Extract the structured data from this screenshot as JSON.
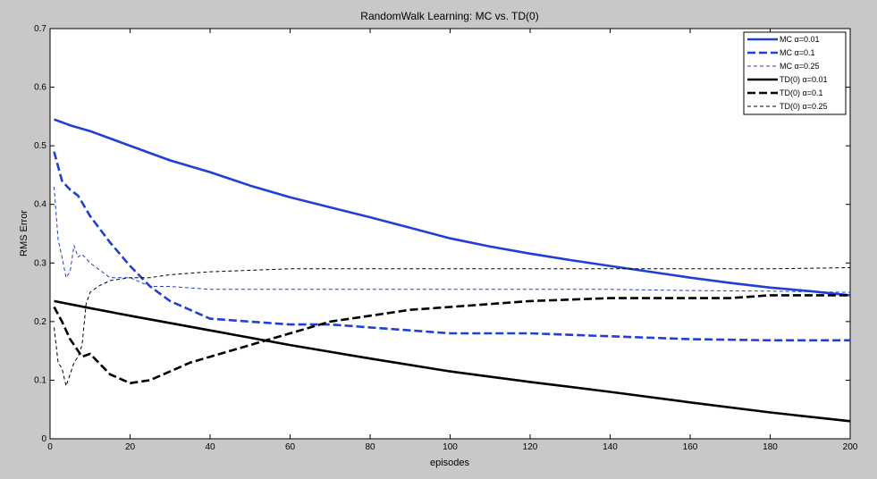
{
  "chart_data": {
    "type": "line",
    "title": "RandomWalk Learning: MC vs. TD(0)",
    "xlabel": "episodes",
    "ylabel": "RMS Error",
    "xlim": [
      0,
      200
    ],
    "ylim": [
      0,
      0.7
    ],
    "xticks": [
      0,
      20,
      40,
      60,
      80,
      100,
      120,
      140,
      160,
      180,
      200
    ],
    "yticks": [
      0,
      0.1,
      0.2,
      0.3,
      0.4,
      0.5,
      0.6,
      0.7
    ],
    "grid": false,
    "legend_position": "top-right",
    "series": [
      {
        "name": "MC α=0.01",
        "color": "#1f3fd6",
        "style": "solid",
        "width": "thick",
        "x": [
          1,
          5,
          10,
          20,
          30,
          40,
          50,
          60,
          70,
          80,
          90,
          100,
          110,
          120,
          130,
          140,
          150,
          160,
          170,
          180,
          190,
          200
        ],
        "y": [
          0.545,
          0.535,
          0.525,
          0.5,
          0.475,
          0.455,
          0.432,
          0.412,
          0.395,
          0.378,
          0.36,
          0.342,
          0.328,
          0.316,
          0.305,
          0.295,
          0.285,
          0.275,
          0.266,
          0.258,
          0.252,
          0.245
        ]
      },
      {
        "name": "MC α=0.1",
        "color": "#1f3fd6",
        "style": "dashed",
        "width": "thick",
        "x": [
          1,
          3,
          5,
          7,
          10,
          15,
          20,
          25,
          30,
          35,
          40,
          50,
          60,
          70,
          80,
          90,
          100,
          120,
          140,
          160,
          180,
          200
        ],
        "y": [
          0.49,
          0.44,
          0.425,
          0.415,
          0.38,
          0.335,
          0.295,
          0.26,
          0.235,
          0.22,
          0.205,
          0.2,
          0.195,
          0.195,
          0.19,
          0.185,
          0.18,
          0.18,
          0.175,
          0.17,
          0.168,
          0.168
        ]
      },
      {
        "name": "MC α=0.25",
        "color": "#1f3fd6",
        "style": "dashed",
        "width": "thin",
        "x": [
          1,
          2,
          3,
          4,
          5,
          6,
          7,
          8,
          10,
          12,
          15,
          20,
          25,
          30,
          40,
          60,
          80,
          100,
          120,
          140,
          160,
          180,
          200
        ],
        "y": [
          0.43,
          0.34,
          0.31,
          0.275,
          0.285,
          0.33,
          0.31,
          0.315,
          0.3,
          0.29,
          0.275,
          0.275,
          0.26,
          0.26,
          0.255,
          0.255,
          0.255,
          0.255,
          0.255,
          0.255,
          0.253,
          0.252,
          0.25
        ]
      },
      {
        "name": "TD(0) α=0.01",
        "color": "#000000",
        "style": "solid",
        "width": "thick",
        "x": [
          1,
          10,
          20,
          40,
          60,
          80,
          100,
          120,
          140,
          160,
          180,
          200
        ],
        "y": [
          0.235,
          0.223,
          0.21,
          0.185,
          0.16,
          0.137,
          0.115,
          0.097,
          0.08,
          0.062,
          0.045,
          0.03
        ]
      },
      {
        "name": "TD(0) α=0.1",
        "color": "#000000",
        "style": "dashed",
        "width": "thick",
        "x": [
          1,
          3,
          5,
          8,
          10,
          15,
          20,
          25,
          30,
          35,
          40,
          50,
          60,
          70,
          80,
          90,
          100,
          120,
          140,
          160,
          170,
          180,
          200
        ],
        "y": [
          0.225,
          0.2,
          0.17,
          0.14,
          0.145,
          0.11,
          0.095,
          0.1,
          0.115,
          0.13,
          0.14,
          0.16,
          0.18,
          0.2,
          0.21,
          0.22,
          0.225,
          0.235,
          0.24,
          0.24,
          0.24,
          0.245,
          0.245
        ]
      },
      {
        "name": "TD(0) α=0.25",
        "color": "#000000",
        "style": "dashed",
        "width": "thin",
        "x": [
          1,
          2,
          3,
          4,
          5,
          6,
          7,
          8,
          9,
          10,
          12,
          15,
          20,
          25,
          30,
          40,
          60,
          80,
          100,
          120,
          140,
          160,
          180,
          200
        ],
        "y": [
          0.19,
          0.13,
          0.12,
          0.09,
          0.11,
          0.13,
          0.14,
          0.16,
          0.23,
          0.25,
          0.26,
          0.27,
          0.275,
          0.275,
          0.28,
          0.285,
          0.29,
          0.29,
          0.29,
          0.29,
          0.29,
          0.29,
          0.29,
          0.292
        ]
      }
    ]
  }
}
